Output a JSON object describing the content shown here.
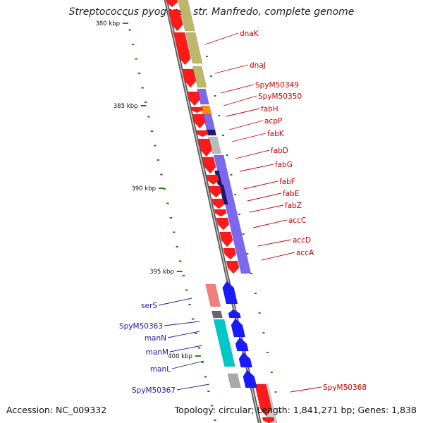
{
  "title": "Streptococcus pyogenes str. Manfredo, complete genome",
  "accession": "Accession: NC_009332",
  "topology": "Topology: circular; Length: 1,841,271 bp; Genes: 1,838",
  "ticks": [
    {
      "label": "380 kbp",
      "pos": 380
    },
    {
      "label": "385 kbp",
      "pos": 385
    },
    {
      "label": "390 kbp",
      "pos": 390
    },
    {
      "label": "395 kbp",
      "pos": 395
    },
    {
      "label": "400 kbp",
      "pos": 400
    }
  ],
  "labels_forward": [
    {
      "text": "dnaK"
    },
    {
      "text": "dnaJ"
    },
    {
      "text": "SpyM50349"
    },
    {
      "text": "SpyM50350"
    },
    {
      "text": "fabH"
    },
    {
      "text": "acpP"
    },
    {
      "text": "fabK"
    },
    {
      "text": "fabD"
    },
    {
      "text": "fabG"
    },
    {
      "text": "fabF"
    },
    {
      "text": "fabE"
    },
    {
      "text": "fabZ"
    },
    {
      "text": "accC"
    },
    {
      "text": "accD"
    },
    {
      "text": "accA"
    },
    {
      "text": "SpyM50368"
    }
  ],
  "labels_reverse": [
    {
      "text": "serS"
    },
    {
      "text": "SpyM50363"
    },
    {
      "text": "manN"
    },
    {
      "text": "manM"
    },
    {
      "text": "manL"
    },
    {
      "text": "SpyM50367"
    }
  ],
  "colors": {
    "forward_gene": "#ff1a1a",
    "reverse_gene": "#1a1aff",
    "forward_label": "#cc0000",
    "reverse_label": "#1a1aaa",
    "backbone": "#888888",
    "tick": "#2e7d1e",
    "khaki": "#bdb76b",
    "purple": "#7b68ee",
    "dark_blue": "#191970",
    "orange": "#ff8c00",
    "teal": "#00c8c8",
    "salmon": "#f08080",
    "grey": "#a9a9a9"
  }
}
